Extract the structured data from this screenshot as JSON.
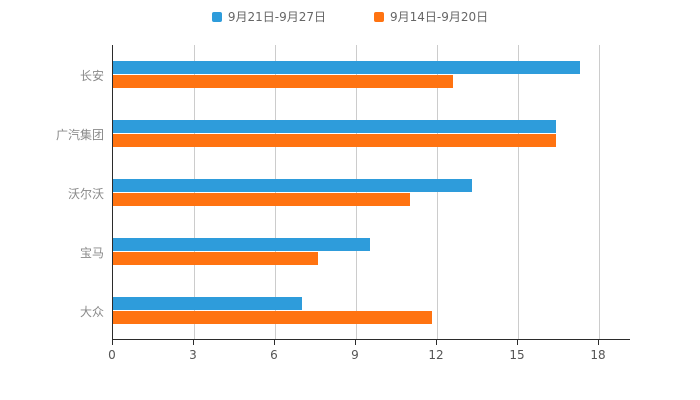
{
  "chart_data": {
    "type": "bar",
    "orientation": "horizontal",
    "title": "",
    "xlabel": "",
    "ylabel": "",
    "categories": [
      "长安",
      "广汽集团",
      "沃尔沃",
      "宝马",
      "大众"
    ],
    "series": [
      {
        "name": "9月21日-9月27日",
        "color": "#2E9CDB",
        "values": [
          17.3,
          16.4,
          13.3,
          9.5,
          7.0
        ]
      },
      {
        "name": "9月14日-9月20日",
        "color": "#FF7311",
        "values": [
          12.6,
          16.4,
          11.0,
          7.6,
          11.8
        ]
      }
    ],
    "xlim": [
      0,
      18
    ],
    "xticks": [
      0,
      3,
      6,
      9,
      12,
      15,
      18
    ],
    "grid": true,
    "legend_position": "top",
    "colors": {
      "axis": "#2b2b2b",
      "gridline": "#cccccc",
      "tick_label": "#555555",
      "category_label": "#8a8a8a",
      "legend_label": "#666666",
      "background": "#ffffff"
    }
  }
}
